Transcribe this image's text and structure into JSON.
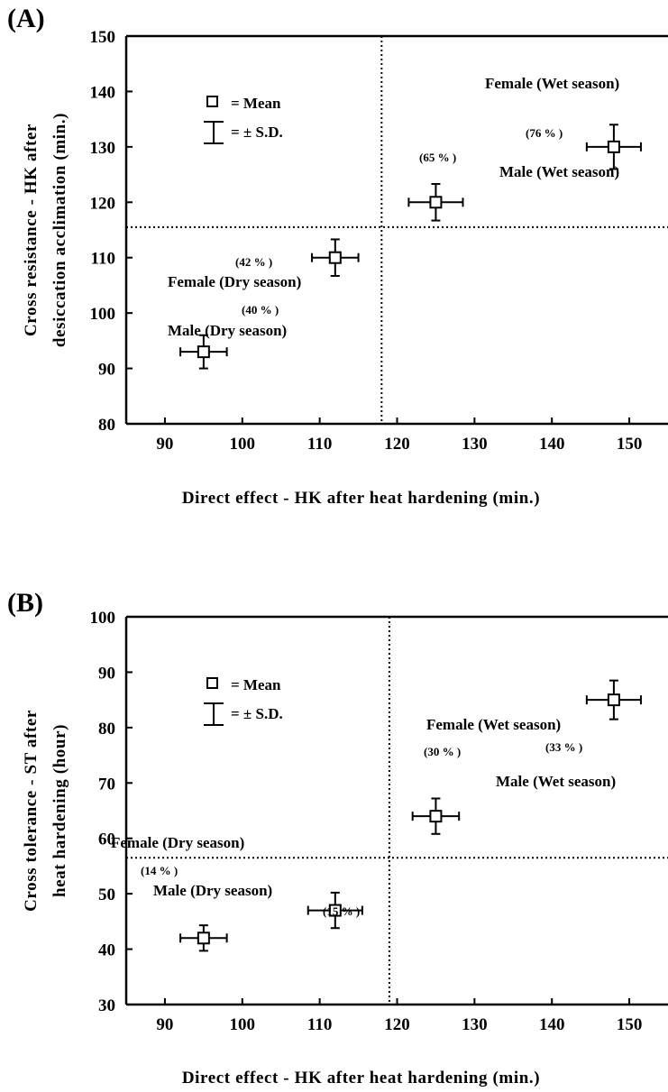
{
  "chart_data": [
    {
      "panel_label": "(A)",
      "type": "scatter",
      "xlabel": "Direct effect - HK after heat hardening (min.)",
      "ylabel_lines": [
        "Cross resistance - HK after",
        "desiccation acclimation (min.)"
      ],
      "xlim": [
        85,
        155
      ],
      "ylim": [
        80,
        150
      ],
      "xticks": [
        90,
        100,
        110,
        120,
        130,
        140,
        150
      ],
      "yticks": [
        80,
        90,
        100,
        110,
        120,
        130,
        140,
        150
      ],
      "ref_lines": {
        "x": 118,
        "y": 115.5
      },
      "legend": {
        "mean_label": "= Mean",
        "sd_label": "= ± S.D."
      },
      "points": [
        {
          "x": 95,
          "y": 93,
          "xerr": 3,
          "yerr": 3,
          "group": "Male (Dry season)",
          "percent": "(40 % )"
        },
        {
          "x": 112,
          "y": 110,
          "xerr": 3,
          "yerr": 3.3,
          "group": "Female (Dry season)",
          "percent": "(42 % )"
        },
        {
          "x": 125,
          "y": 120,
          "xerr": 3.5,
          "yerr": 3.3,
          "group": "Male (Wet season)",
          "percent": "(65 % )"
        },
        {
          "x": 148,
          "y": 130,
          "xerr": 3.5,
          "yerr": 4,
          "group": "Female (Wet season)",
          "percent": "(76 % )"
        }
      ]
    },
    {
      "panel_label": "(B)",
      "type": "scatter",
      "xlabel": "Direct effect - HK after heat hardening (min.)",
      "ylabel_lines": [
        "Cross tolerance - ST after",
        "heat hardening (hour)"
      ],
      "xlim": [
        85,
        155
      ],
      "ylim": [
        30,
        100
      ],
      "xticks": [
        90,
        100,
        110,
        120,
        130,
        140,
        150
      ],
      "yticks": [
        30,
        40,
        50,
        60,
        70,
        80,
        90,
        100
      ],
      "ref_lines": {
        "x": 119,
        "y": 56.5
      },
      "legend": {
        "mean_label": "= Mean",
        "sd_label": "= ± S.D."
      },
      "points": [
        {
          "x": 95,
          "y": 42,
          "xerr": 3,
          "yerr": 2.3,
          "group": "Male (Dry season)",
          "percent": "(14 % )"
        },
        {
          "x": 112,
          "y": 47,
          "xerr": 3.5,
          "yerr": 3.2,
          "group": "Female (Dry season)",
          "percent": "(15 % )"
        },
        {
          "x": 125,
          "y": 64,
          "xerr": 3,
          "yerr": 3.2,
          "group": "Male (Wet season)",
          "percent": "(30 % )"
        },
        {
          "x": 148,
          "y": 85,
          "xerr": 3.5,
          "yerr": 3.5,
          "group": "Female (Wet season)",
          "percent": "(33 % )"
        }
      ]
    }
  ]
}
